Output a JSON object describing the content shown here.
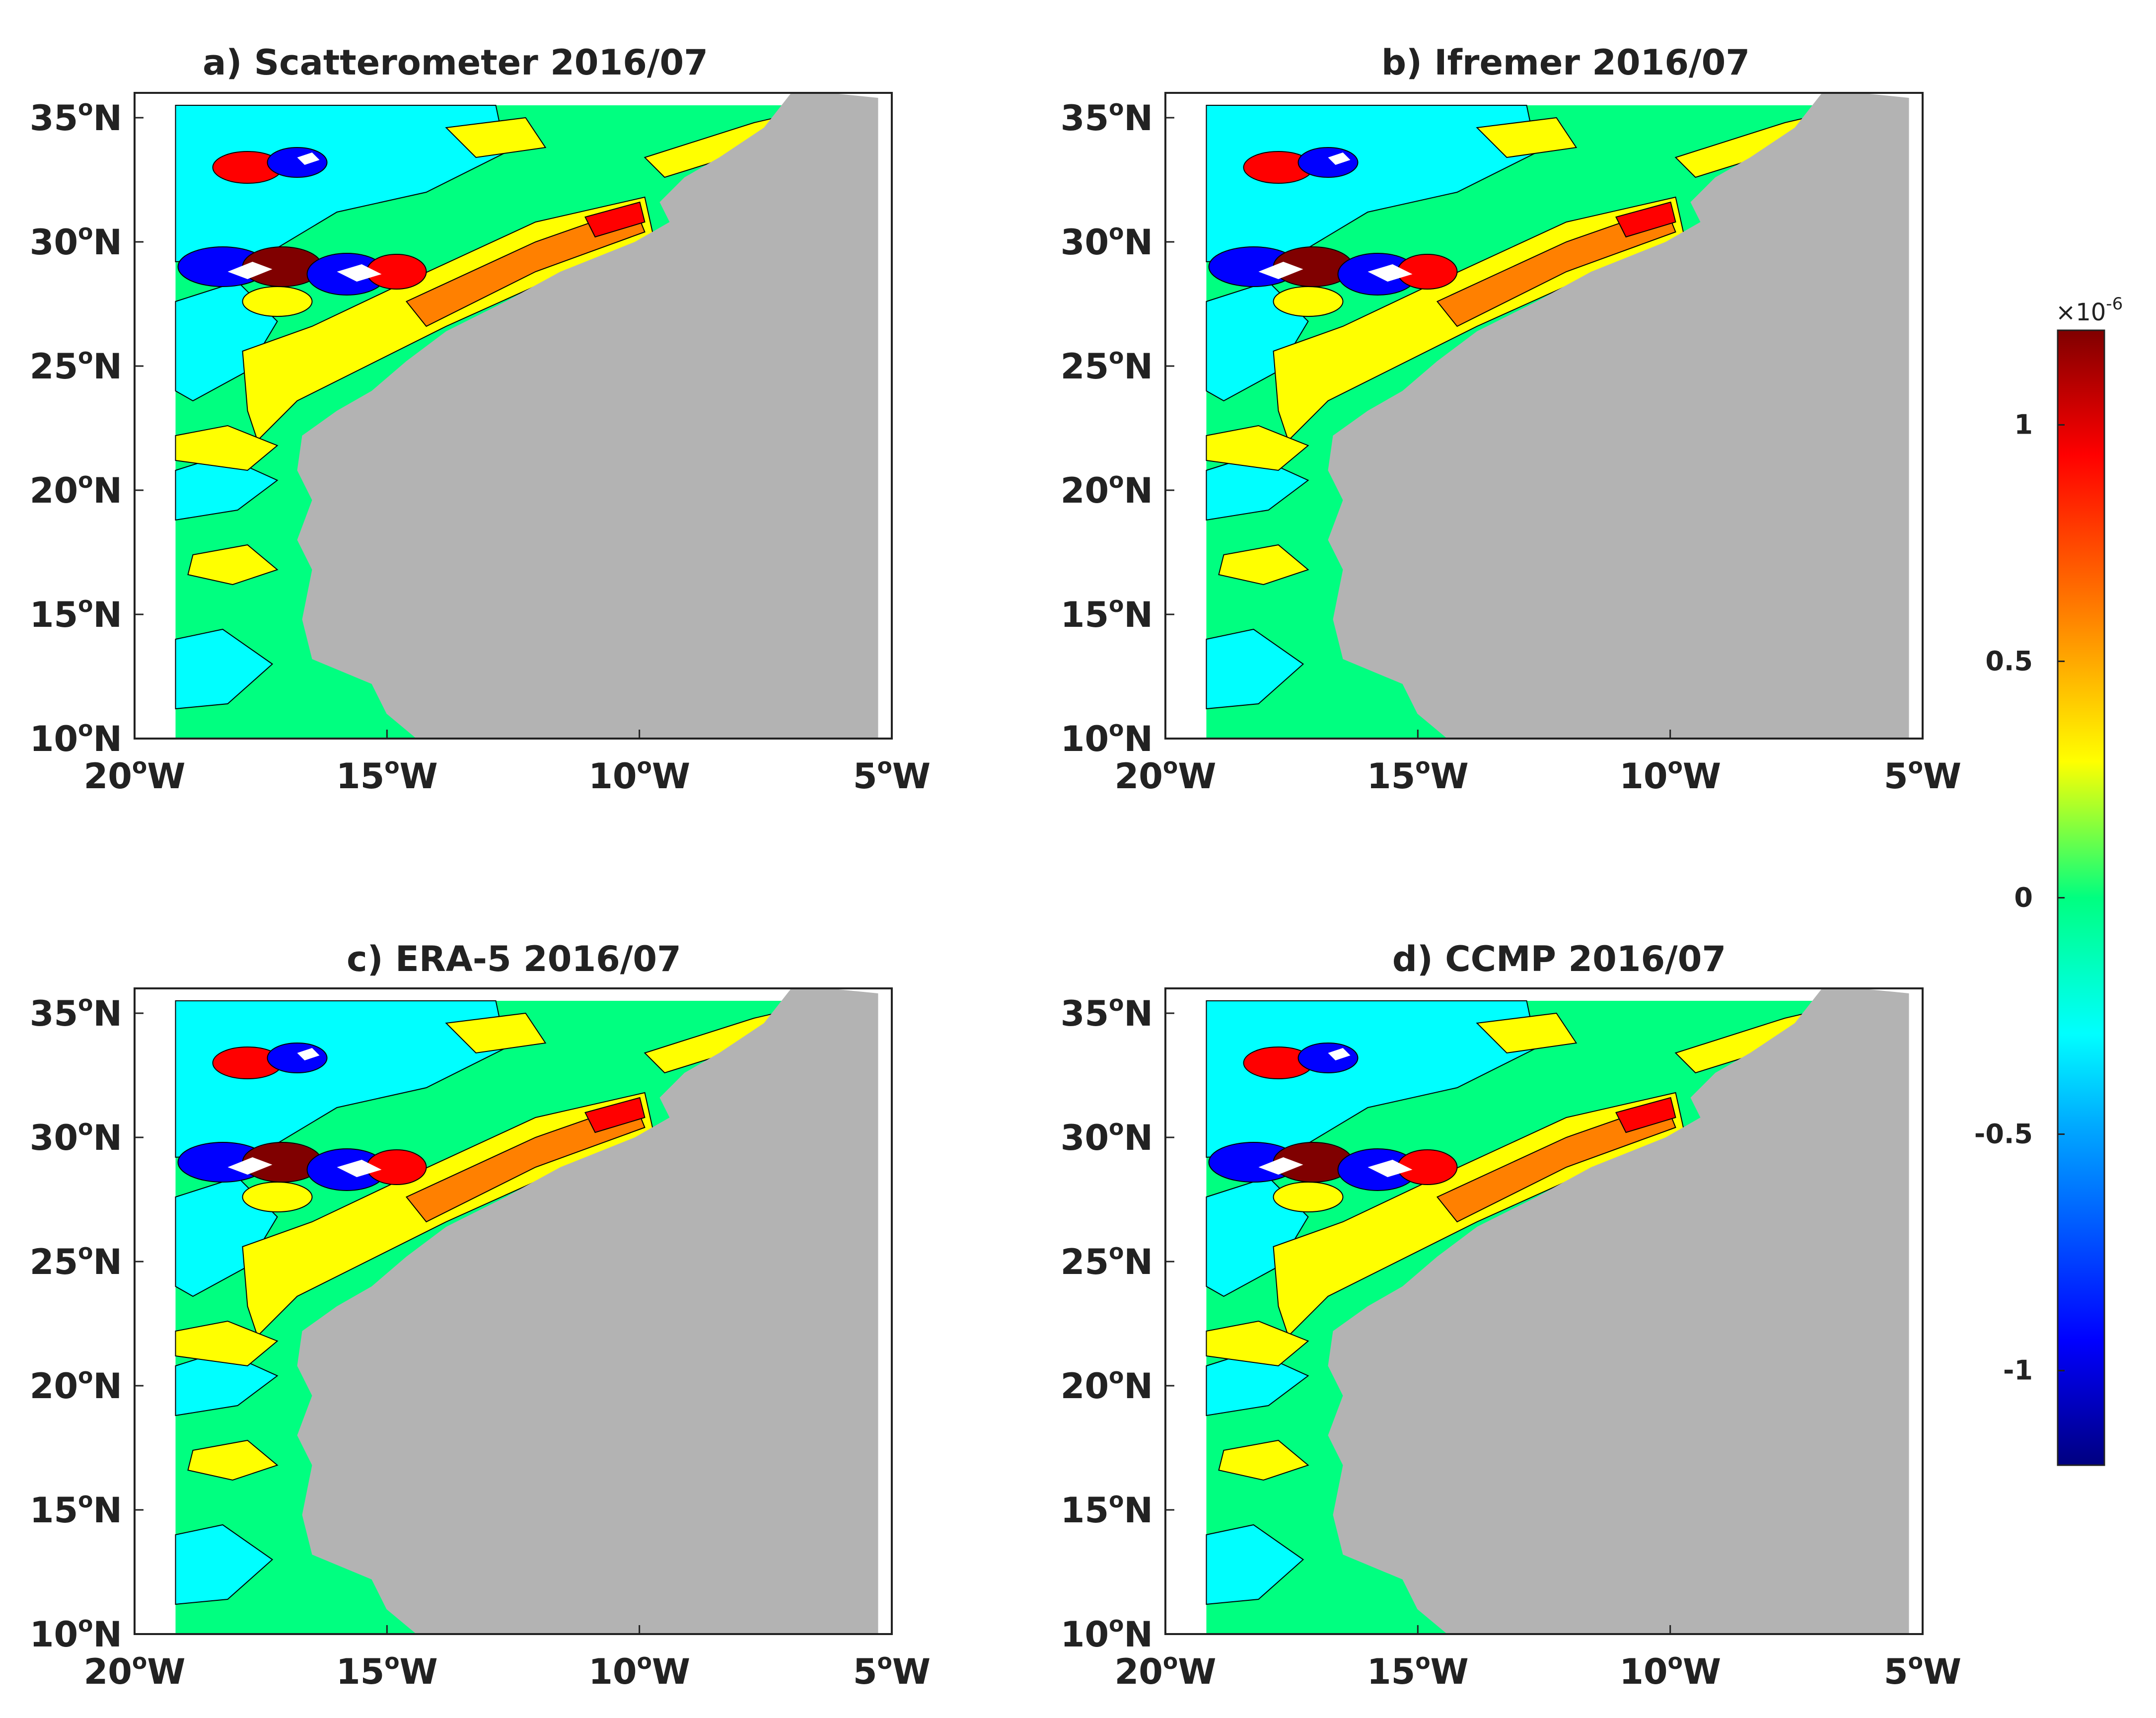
{
  "figure": {
    "panels": [
      {
        "id": "a",
        "title": "a) Scatterometer 2016/07",
        "x_ticks": [
          {
            "value": 20,
            "label": "20",
            "hemi": "W"
          },
          {
            "value": 15,
            "label": "15",
            "hemi": "W"
          },
          {
            "value": 10,
            "label": "10",
            "hemi": "W"
          },
          {
            "value": 5,
            "label": "5",
            "hemi": "W"
          }
        ],
        "y_ticks": [
          {
            "value": 35,
            "label": "35",
            "hemi": "N"
          },
          {
            "value": 30,
            "label": "30",
            "hemi": "N"
          },
          {
            "value": 25,
            "label": "25",
            "hemi": "N"
          },
          {
            "value": 20,
            "label": "20",
            "hemi": "N"
          },
          {
            "value": 15,
            "label": "15",
            "hemi": "N"
          },
          {
            "value": 10,
            "label": "10",
            "hemi": "N"
          }
        ]
      },
      {
        "id": "b",
        "title": "b) Ifremer 2016/07",
        "x_ticks": [
          {
            "value": 20,
            "label": "20",
            "hemi": "W"
          },
          {
            "value": 15,
            "label": "15",
            "hemi": "W"
          },
          {
            "value": 10,
            "label": "10",
            "hemi": "W"
          },
          {
            "value": 5,
            "label": "5",
            "hemi": "W"
          }
        ],
        "y_ticks": [
          {
            "value": 35,
            "label": "35",
            "hemi": "N"
          },
          {
            "value": 30,
            "label": "30",
            "hemi": "N"
          },
          {
            "value": 25,
            "label": "25",
            "hemi": "N"
          },
          {
            "value": 20,
            "label": "20",
            "hemi": "N"
          },
          {
            "value": 15,
            "label": "15",
            "hemi": "N"
          },
          {
            "value": 10,
            "label": "10",
            "hemi": "N"
          }
        ]
      },
      {
        "id": "c",
        "title": "c) ERA-5 2016/07",
        "x_ticks": [
          {
            "value": 20,
            "label": "20",
            "hemi": "W"
          },
          {
            "value": 15,
            "label": "15",
            "hemi": "W"
          },
          {
            "value": 10,
            "label": "10",
            "hemi": "W"
          },
          {
            "value": 5,
            "label": "5",
            "hemi": "W"
          }
        ],
        "y_ticks": [
          {
            "value": 35,
            "label": "35",
            "hemi": "N"
          },
          {
            "value": 30,
            "label": "30",
            "hemi": "N"
          },
          {
            "value": 25,
            "label": "25",
            "hemi": "N"
          },
          {
            "value": 20,
            "label": "20",
            "hemi": "N"
          },
          {
            "value": 15,
            "label": "15",
            "hemi": "N"
          },
          {
            "value": 10,
            "label": "10",
            "hemi": "N"
          }
        ]
      },
      {
        "id": "d",
        "title": "d) CCMP 2016/07",
        "x_ticks": [
          {
            "value": 20,
            "label": "20",
            "hemi": "W"
          },
          {
            "value": 15,
            "label": "15",
            "hemi": "W"
          },
          {
            "value": 10,
            "label": "10",
            "hemi": "W"
          },
          {
            "value": 5,
            "label": "5",
            "hemi": "W"
          }
        ],
        "y_ticks": [
          {
            "value": 35,
            "label": "35",
            "hemi": "N"
          },
          {
            "value": 30,
            "label": "30",
            "hemi": "N"
          },
          {
            "value": 25,
            "label": "25",
            "hemi": "N"
          },
          {
            "value": 20,
            "label": "20",
            "hemi": "N"
          },
          {
            "value": 15,
            "label": "15",
            "hemi": "N"
          },
          {
            "value": 10,
            "label": "10",
            "hemi": "N"
          }
        ]
      }
    ],
    "degree_symbol": "o",
    "colorbar": {
      "exponent_prefix": "×10",
      "exponent_power": "-6",
      "ticks": [
        {
          "value": 1,
          "label": "1"
        },
        {
          "value": 0.5,
          "label": "0.5"
        },
        {
          "value": 0,
          "label": "0"
        },
        {
          "value": -0.5,
          "label": "-0.5"
        },
        {
          "value": -1,
          "label": "-1"
        }
      ],
      "range": [
        -1.2,
        1.2
      ],
      "colormap": "jet",
      "colors": [
        "#000080",
        "#0000ff",
        "#00aaff",
        "#00ffff",
        "#00ff80",
        "#ffff00",
        "#ff8000",
        "#ff0000",
        "#800000"
      ]
    },
    "land_color": "#b3b3b3",
    "background_field_color": "#00ff80"
  }
}
